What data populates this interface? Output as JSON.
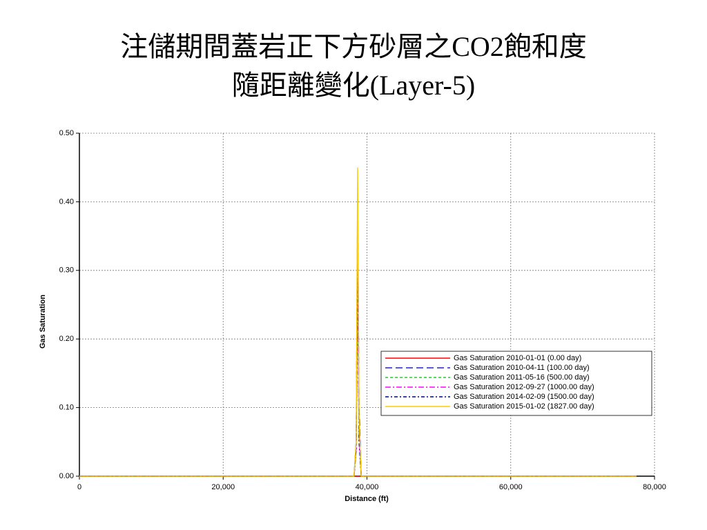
{
  "chart_data": {
    "type": "line",
    "title": [
      "注儲期間蓋岩正下方砂層之CO2飽和度",
      "隨距離變化(Layer-5)"
    ],
    "x_label": "Distance (ft)",
    "y_label": "Gas Saturation",
    "x": [
      0,
      38200,
      38500,
      38700,
      38900,
      39200,
      77500
    ],
    "series": [
      {
        "name": "Gas Saturation 2010-01-01 (0.00 day)",
        "color": "#ff0000",
        "dash": "solid",
        "values": [
          0,
          0,
          0,
          0,
          0,
          0,
          0
        ]
      },
      {
        "name": "Gas Saturation 2010-04-11 (100.00 day)",
        "color": "#2222cc",
        "dash": "long-dash",
        "values": [
          0,
          0,
          0.05,
          0.4,
          0.1,
          0,
          0
        ]
      },
      {
        "name": "Gas Saturation 2011-05-16 (500.00 day)",
        "color": "#22cc22",
        "dash": "short-dash",
        "values": [
          0,
          0,
          0.05,
          0.27,
          0.08,
          0,
          0
        ]
      },
      {
        "name": "Gas Saturation 2012-09-27 (1000.00 day)",
        "color": "#ff00ff",
        "dash": "dash-dot",
        "values": [
          0,
          0,
          0.04,
          0.32,
          0.06,
          0,
          0
        ]
      },
      {
        "name": "Gas Saturation 2014-02-09 (1500.00 day)",
        "color": "#000080",
        "dash": "dash-dot-short",
        "values": [
          0,
          0,
          0.04,
          0.36,
          0.05,
          0,
          0
        ]
      },
      {
        "name": "Gas Saturation 2015-01-02 (1827.00 day)",
        "color": "#ffcc00",
        "dash": "solid",
        "values": [
          0,
          0,
          0.05,
          0.45,
          0.08,
          0,
          0
        ]
      }
    ],
    "xlim": [
      0,
      80000
    ],
    "xticks": [
      0,
      {
        "value": 20000,
        "label": "20,000"
      },
      {
        "value": 40000,
        "label": "40,000"
      },
      {
        "value": 60000,
        "label": "60,000"
      },
      {
        "value": 80000,
        "label": "80,000"
      }
    ],
    "ylim": [
      0,
      0.5
    ],
    "yticks": [
      {
        "value": 0,
        "label": "0.00"
      },
      {
        "value": 0.1,
        "label": "0.10"
      },
      {
        "value": 0.2,
        "label": "0.20"
      },
      {
        "value": 0.3,
        "label": "0.30"
      },
      {
        "value": 0.4,
        "label": "0.40"
      },
      {
        "value": 0.5,
        "label": "0.50"
      }
    ],
    "grid": true,
    "legend": "lower-right"
  }
}
